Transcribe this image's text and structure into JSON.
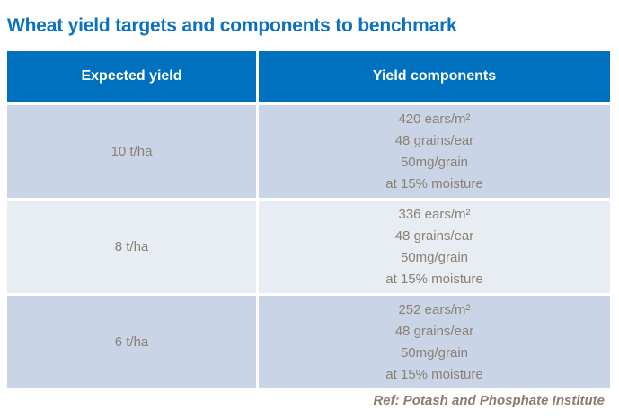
{
  "title": "Wheat yield targets and components to benchmark",
  "table": {
    "headers": {
      "expected_yield": "Expected yield",
      "yield_components": "Yield components"
    },
    "rows": [
      {
        "yield": "10 t/ha",
        "components": [
          "420 ears/m²",
          "48 grains/ear",
          "50mg/grain",
          "at 15% moisture"
        ]
      },
      {
        "yield": "8 t/ha",
        "components": [
          "336 ears/m²",
          "48 grains/ear",
          "50mg/grain",
          "at 15% moisture"
        ]
      },
      {
        "yield": "6 t/ha",
        "components": [
          "252 ears/m²",
          "48 grains/ear",
          "50mg/grain",
          "at 15% moisture"
        ]
      }
    ]
  },
  "footer": {
    "reference": "Ref: Potash and Phosphate Institute"
  },
  "colors": {
    "title_blue": "#0c72bf",
    "header_bg": "#0071be",
    "header_text": "#ffffff",
    "row_dark_bg": "#c9d4e6",
    "row_light_bg": "#e8ecf3",
    "body_text": "#8b8073",
    "reference_text": "#8b7d6d"
  },
  "chart_data": {
    "type": "table",
    "title": "Wheat yield targets and components to benchmark",
    "columns": [
      "Expected yield",
      "Yield components"
    ],
    "rows": [
      [
        "10 t/ha",
        "420 ears/m²; 48 grains/ear; 50mg/grain; at 15% moisture"
      ],
      [
        "8 t/ha",
        "336 ears/m²; 48 grains/ear; 50mg/grain; at 15% moisture"
      ],
      [
        "6 t/ha",
        "252 ears/m²; 48 grains/ear; 50mg/grain; at 15% moisture"
      ]
    ],
    "note": "Ref: Potash and Phosphate Institute",
    "layout": {
      "header_style": "solid blue band, white bold centered text",
      "row_striping": "rows 1 and 3 medium blue-gray, row 2 pale blue-gray",
      "cell_alignment": "center"
    }
  }
}
